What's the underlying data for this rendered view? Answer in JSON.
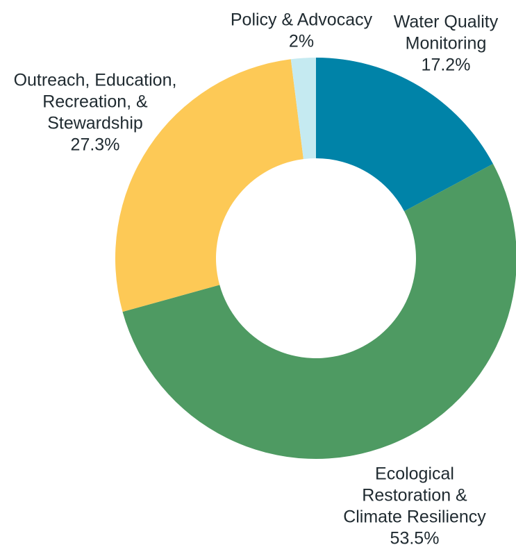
{
  "chart_data": {
    "type": "pie",
    "variant": "donut",
    "legend": "none",
    "slices": [
      {
        "key": "water-quality-monitoring",
        "label_lines": [
          "Water Quality",
          "Monitoring"
        ],
        "label": "Water Quality Monitoring",
        "value": 17.2,
        "value_label": "17.2%",
        "color": "#0083a8"
      },
      {
        "key": "ecological-restoration",
        "label_lines": [
          "Ecological",
          "Restoration &",
          "Climate Resiliency"
        ],
        "label": "Ecological Restoration & Climate Resiliency",
        "value": 53.5,
        "value_label": "53.5%",
        "color": "#4e9a62"
      },
      {
        "key": "outreach-education",
        "label_lines": [
          "Outreach, Education,",
          "Recreation, &",
          "Stewardship"
        ],
        "label": "Outreach, Education, Recreation, & Stewardship",
        "value": 27.3,
        "value_label": "27.3%",
        "color": "#fdc956"
      },
      {
        "key": "policy-advocacy",
        "label_lines": [
          "Policy & Advocacy"
        ],
        "label": "Policy & Advocacy",
        "value": 2,
        "value_label": "2%",
        "color": "#c5eaf1"
      }
    ]
  }
}
